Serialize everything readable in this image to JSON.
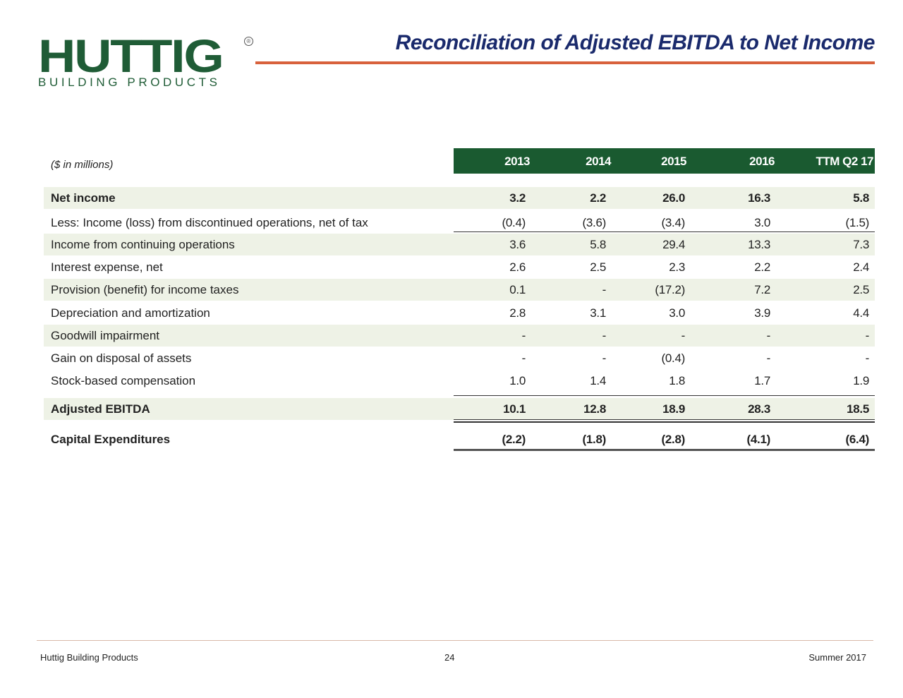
{
  "logo": {
    "word": "HUTTIG",
    "sub": "BUILDING PRODUCTS",
    "reg": "®"
  },
  "title": "Reconciliation of Adjusted EBITDA to Net Income",
  "units": "($ in millions)",
  "columns": [
    "2013",
    "2014",
    "2015",
    "2016",
    "TTM Q2 17"
  ],
  "rows": [
    {
      "label": "Net income",
      "values": [
        "3.2",
        "2.2",
        "26.0",
        "16.3",
        "5.8"
      ]
    },
    {
      "label": "Less: Income (loss) from discontinued operations, net of tax",
      "values": [
        "(0.4)",
        "(3.6)",
        "(3.4)",
        "3.0",
        "(1.5)"
      ]
    },
    {
      "label": "Income from continuing operations",
      "values": [
        "3.6",
        "5.8",
        "29.4",
        "13.3",
        "7.3"
      ]
    },
    {
      "label": "Interest expense, net",
      "values": [
        "2.6",
        "2.5",
        "2.3",
        "2.2",
        "2.4"
      ]
    },
    {
      "label": "Provision (benefit) for income taxes",
      "values": [
        "0.1",
        "-",
        "(17.2)",
        "7.2",
        "2.5"
      ]
    },
    {
      "label": "Depreciation and amortization",
      "values": [
        "2.8",
        "3.1",
        "3.0",
        "3.9",
        "4.4"
      ]
    },
    {
      "label": "Goodwill impairment",
      "values": [
        "-",
        "-",
        "-",
        "-",
        "-"
      ]
    },
    {
      "label": "Gain on disposal of assets",
      "values": [
        "-",
        "-",
        "(0.4)",
        "-",
        "-"
      ]
    },
    {
      "label": "Stock-based compensation",
      "values": [
        "1.0",
        "1.4",
        "1.8",
        "1.7",
        "1.9"
      ]
    },
    {
      "label": "Adjusted EBITDA",
      "values": [
        "10.1",
        "12.8",
        "18.9",
        "28.3",
        "18.5"
      ]
    },
    {
      "label": "Capital Expenditures",
      "values": [
        "(2.2)",
        "(1.8)",
        "(2.8)",
        "(4.1)",
        "(6.4)"
      ]
    }
  ],
  "footer": {
    "left": "Huttig Building Products",
    "page": "24",
    "right": "Summer 2017"
  },
  "colors": {
    "brand_green": "#1f5c36",
    "header_green": "#1a5a30",
    "title_blue": "#1a2a6c",
    "accent_orange": "#d8613c",
    "row_shade": "#eef2e6"
  }
}
